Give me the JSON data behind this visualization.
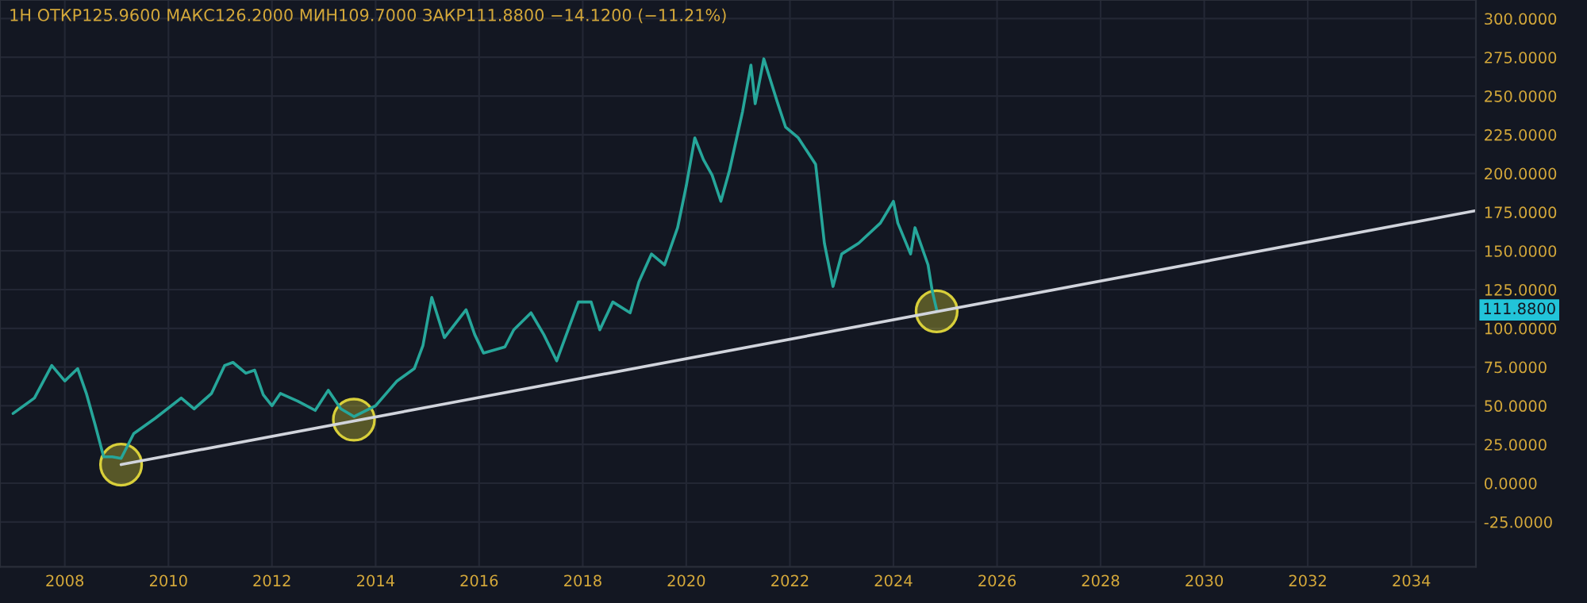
{
  "chart_data": {
    "type": "line",
    "title": "1H ОТКР125.9600 МАКС126.2000 МИН109.7000 ЗАКР111.8800 −14.1200 (−11.21%)",
    "series": [
      {
        "color": "#26a69a",
        "x": [
          "2007-01",
          "2007-06",
          "2007-10",
          "2008-01",
          "2008-04",
          "2008-06",
          "2008-08",
          "2008-10",
          "2008-12",
          "2009-02",
          "2009-05",
          "2009-10",
          "2010-04",
          "2010-07",
          "2010-11",
          "2011-02",
          "2011-04",
          "2011-07",
          "2011-09",
          "2011-11",
          "2012-01",
          "2012-03",
          "2012-07",
          "2012-11",
          "2013-02",
          "2013-05",
          "2013-08",
          "2014-01",
          "2014-06",
          "2014-10",
          "2014-12",
          "2015-02",
          "2015-05",
          "2015-10",
          "2015-12",
          "2016-02",
          "2016-07",
          "2016-09",
          "2017-01",
          "2017-04",
          "2017-07",
          "2017-12",
          "2018-03",
          "2018-05",
          "2018-08",
          "2018-12",
          "2019-02",
          "2019-05",
          "2019-08",
          "2019-11",
          "2020-01",
          "2020-03",
          "2020-05",
          "2020-07",
          "2020-09",
          "2020-11",
          "2021-02",
          "2021-04",
          "2021-05",
          "2021-07",
          "2021-10",
          "2021-12",
          "2022-03",
          "2022-07",
          "2022-09",
          "2022-11",
          "2023-01",
          "2023-05",
          "2023-10",
          "2024-01",
          "2024-02",
          "2024-05",
          "2024-06",
          "2024-09",
          "2024-10",
          "2024-11"
        ],
        "values": [
          45,
          55,
          76,
          66,
          74,
          58,
          38,
          17,
          17,
          16,
          32,
          42,
          55,
          48,
          58,
          76,
          78,
          71,
          73,
          57,
          50,
          58,
          53,
          47,
          60,
          48,
          43,
          50,
          66,
          74,
          89,
          120,
          94,
          112,
          96,
          84,
          88,
          99,
          110,
          96,
          79,
          117,
          117,
          99,
          117,
          110,
          130,
          148,
          141,
          165,
          192,
          223,
          209,
          199,
          182,
          202,
          240,
          270,
          245,
          274,
          247,
          230,
          223,
          206,
          155,
          127,
          148,
          155,
          168,
          182,
          168,
          148,
          165,
          141,
          124,
          111.88
        ]
      },
      {
        "color": "#d1d4dc",
        "x": [
          "2009-02",
          "2035-04"
        ],
        "values": [
          12,
          176
        ]
      },
      {
        "type": "scatter",
        "marker": "circle",
        "color": "#bfb833",
        "x": [
          "2009-02",
          "2013-08",
          "2024-11"
        ],
        "values": [
          12,
          41,
          111
        ]
      }
    ],
    "xlim": [
      "2006-10",
      "2035-04"
    ],
    "xticks": [
      {
        "value": "2008",
        "label": "2008"
      },
      {
        "value": "2010",
        "label": "2010"
      },
      {
        "value": "2012",
        "label": "2012"
      },
      {
        "value": "2014",
        "label": "2014"
      },
      {
        "value": "2016",
        "label": "2016"
      },
      {
        "value": "2018",
        "label": "2018"
      },
      {
        "value": "2020",
        "label": "2020"
      },
      {
        "value": "2022",
        "label": "2022"
      },
      {
        "value": "2024",
        "label": "2024"
      },
      {
        "value": "2026",
        "label": "2026"
      },
      {
        "value": "2028",
        "label": "2028"
      },
      {
        "value": "2030",
        "label": "2030"
      },
      {
        "value": "2032",
        "label": "2032"
      },
      {
        "value": "2034",
        "label": "2034"
      }
    ],
    "ylim": [
      -54,
      312
    ],
    "yticks": [
      {
        "value": -25,
        "label": "-25.0000"
      },
      {
        "value": 0,
        "label": "0.0000"
      },
      {
        "value": 25,
        "label": "25.0000"
      },
      {
        "value": 50,
        "label": "50.0000"
      },
      {
        "value": 75,
        "label": "75.0000"
      },
      {
        "value": 100,
        "label": "100.0000"
      },
      {
        "value": 125,
        "label": "125.0000"
      },
      {
        "value": 150,
        "label": "150.0000"
      },
      {
        "value": 175,
        "label": "175.0000"
      },
      {
        "value": 200,
        "label": "200.0000"
      },
      {
        "value": 225,
        "label": "225.0000"
      },
      {
        "value": 250,
        "label": "250.0000"
      },
      {
        "value": 275,
        "label": "275.0000"
      },
      {
        "value": 300,
        "label": "300.0000"
      }
    ],
    "annotations": [
      "111.8800"
    ],
    "grid": true,
    "legend": false,
    "marker": "none",
    "line_style": "solid"
  }
}
